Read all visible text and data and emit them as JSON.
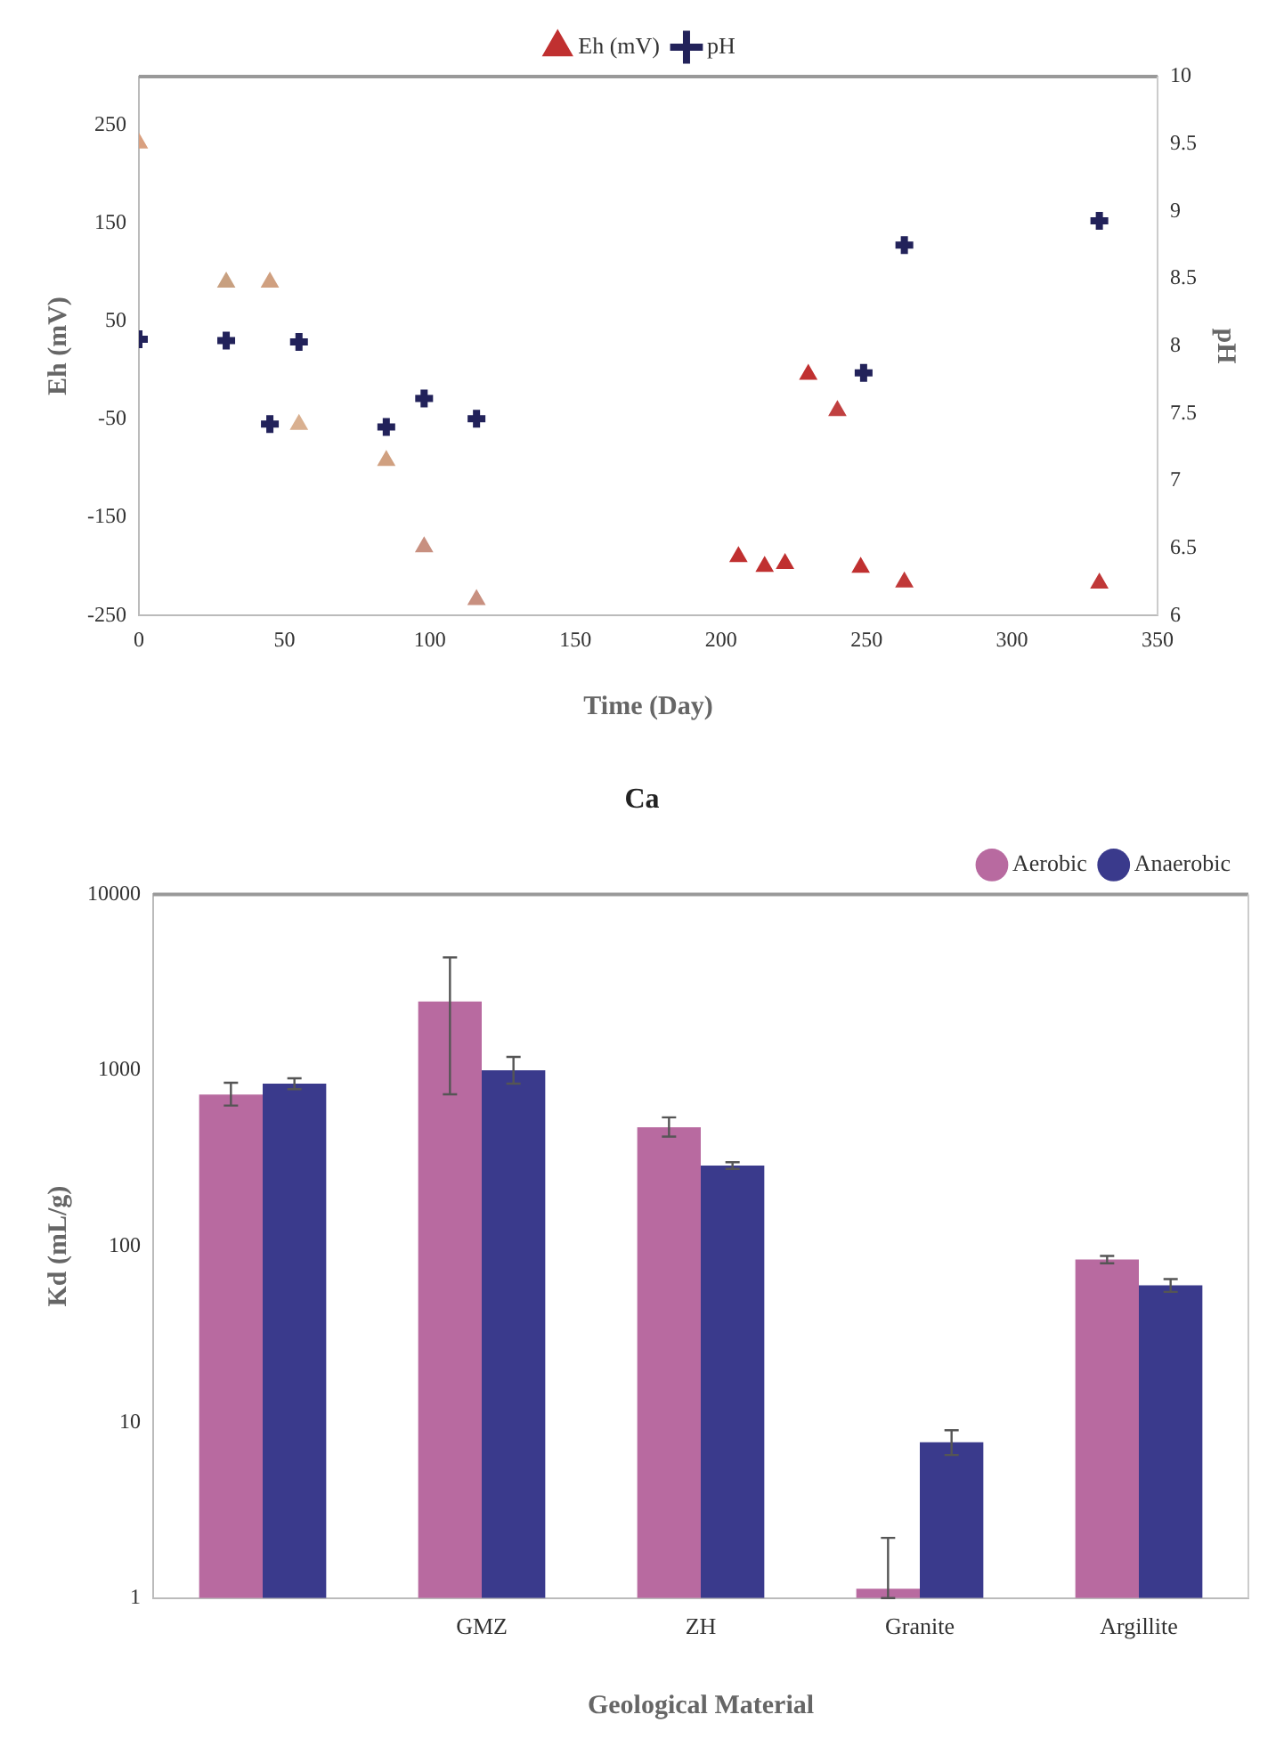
{
  "chart_data": [
    {
      "type": "scatter",
      "xlabel": "Time (Day)",
      "ylabel": "Eh (mV)",
      "y2label": "pH",
      "xlim": [
        0,
        350
      ],
      "xticks": [
        0,
        50,
        100,
        150,
        200,
        250,
        300,
        350
      ],
      "ylim": [
        -250,
        300
      ],
      "yticks": [
        -250,
        -150,
        -50,
        50,
        150,
        250
      ],
      "y2lim": [
        6,
        10
      ],
      "y2ticks": [
        6,
        6.5,
        7,
        7.5,
        8,
        8.5,
        9,
        9.5,
        10
      ],
      "grid": false,
      "legend": "top",
      "series": [
        {
          "name": "Eh (mV)",
          "color": "#c03030",
          "marker": "triangle",
          "x": [
            0,
            30,
            45,
            55,
            85,
            98,
            116,
            206,
            215,
            222,
            230,
            240,
            248,
            263,
            330
          ],
          "values": [
            232,
            90,
            90,
            -55,
            -92,
            -180,
            -234,
            -190,
            -200,
            -197,
            -4,
            -41,
            -201,
            -216,
            -217
          ],
          "colors": [
            "#d9a080",
            "#c8a080",
            "#d0a080",
            "#d9b090",
            "#d0a080",
            "#c89080",
            "#c89080",
            "#c03030",
            "#c03030",
            "#c03030",
            "#c03030",
            "#c04040",
            "#c03030",
            "#c03838",
            "#c03838"
          ]
        },
        {
          "name": "pH",
          "color": "#22225a",
          "marker": "cross",
          "axis": "y2",
          "x": [
            0,
            30,
            45,
            55,
            85,
            98,
            116,
            249,
            263,
            330
          ],
          "values": [
            8.05,
            8.04,
            7.42,
            8.03,
            7.4,
            7.61,
            7.46,
            7.8,
            8.75,
            8.93
          ]
        }
      ]
    },
    {
      "type": "bar",
      "title": "Ca",
      "xlabel": "Geological Material",
      "ylabel": "Kd (mL/g)",
      "log": true,
      "categories": [
        null,
        "GMZ",
        "ZH",
        "Granite",
        "Argillite"
      ],
      "ylim": [
        1,
        10000
      ],
      "yticks": [
        1,
        10,
        100,
        1000,
        10000
      ],
      "grid": false,
      "legend": "top right",
      "series": [
        {
          "name": "Aerobic",
          "color": "#b86aa0",
          "values": [
            727,
            2460,
            475,
            1.13,
            84
          ],
          "errors": [
            [
              630,
              850
            ],
            [
              730,
              4380
            ],
            [
              420,
              540
            ],
            [
              1,
              2.2
            ],
            [
              80,
              88
            ]
          ]
        },
        {
          "name": "Anaerobic",
          "color": "#3a3a8c",
          "values": [
            840,
            1000,
            287,
            7.7,
            60
          ],
          "errors": [
            [
              780,
              900
            ],
            [
              840,
              1190
            ],
            [
              275,
              300
            ],
            [
              6.5,
              9
            ],
            [
              55,
              65
            ]
          ]
        }
      ]
    }
  ]
}
